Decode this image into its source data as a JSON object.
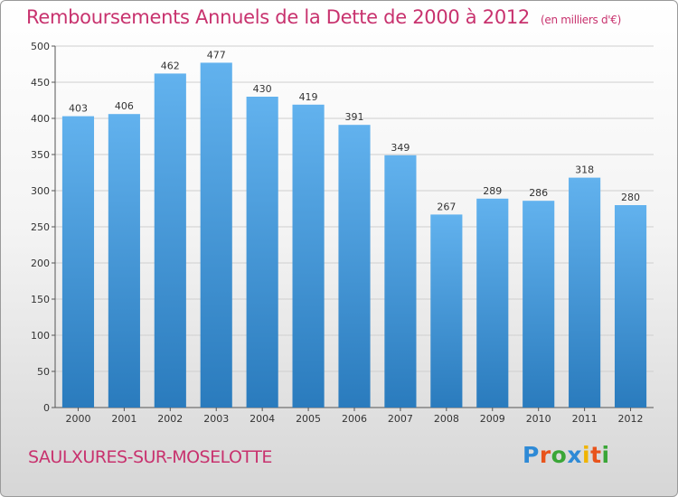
{
  "header": {
    "title": "Remboursements Annuels de la Dette de 2000 à 2012",
    "unit": "(en milliers d'€)"
  },
  "footer": {
    "city": "SAULXURES-SUR-MOSELOTTE",
    "logo": "Proxiti"
  },
  "colors": {
    "title": "#c8326e",
    "bar_top": "#62b2ee",
    "bar_bottom": "#2a7bbd",
    "logo_letters": [
      "#2e8ad6",
      "#e8541c",
      "#3aa637",
      "#2e8ad6",
      "#f0b400",
      "#e8541c",
      "#3aa637"
    ]
  },
  "chart_data": {
    "type": "bar",
    "categories": [
      "2000",
      "2001",
      "2002",
      "2003",
      "2004",
      "2005",
      "2006",
      "2007",
      "2008",
      "2009",
      "2010",
      "2011",
      "2012"
    ],
    "values": [
      403,
      406,
      462,
      477,
      430,
      419,
      391,
      349,
      267,
      289,
      286,
      318,
      280
    ],
    "title": "Remboursements Annuels de la Dette de 2000 à 2012",
    "ylim": [
      0,
      500
    ],
    "yticks": [
      0,
      50,
      100,
      150,
      200,
      250,
      300,
      350,
      400,
      450,
      500
    ],
    "grid": true,
    "legend": "none"
  }
}
